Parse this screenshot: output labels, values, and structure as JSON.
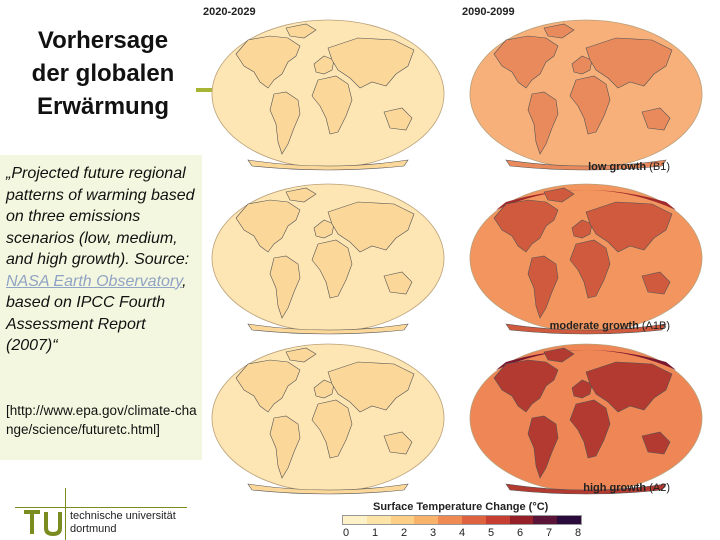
{
  "slide": {
    "title": "Vorhersage\nder globalen\nErwärmung",
    "caption_text": "„Projected future regional patterns of warming based on three emissions scenarios (low, medium, and high growth). Source: ",
    "caption_link": "NASA Earth Observatory",
    "caption_tail": ", based on IPCC Fourth Assessment Report (2007)“",
    "url": "[http://www.epa.gov/climate-change/science/futuretc.html]",
    "university": "technische universität\ndortmund"
  },
  "figure": {
    "periods": [
      "2020-2029",
      "2090-2099"
    ],
    "scenarios": [
      {
        "name": "low growth",
        "code": "(B1)"
      },
      {
        "name": "moderate growth",
        "code": "(A1B)"
      },
      {
        "name": "high growth",
        "code": "(A2)"
      }
    ],
    "legend_title": "Surface Temperature Change (°C)",
    "legend_ticks": [
      "0",
      "1",
      "2",
      "3",
      "4",
      "5",
      "6",
      "7",
      "8"
    ],
    "legend_colors": [
      "#fdf1c8",
      "#fce3a8",
      "#fbcf86",
      "#f8b26a",
      "#ef8b52",
      "#df6240",
      "#c63d31",
      "#962027",
      "#5a1438",
      "#2a0a3a"
    ],
    "map_colors": {
      "ocean_2020": "#fde6b3",
      "land_2020": "#fbd79a",
      "ocean_2090_low": "#f7b07a",
      "land_2090_low": "#e98a5c",
      "ocean_2090_mod": "#f2955f",
      "land_2090_mod": "#d05a3e",
      "ocean_2090_high": "#ee8656",
      "land_2090_high": "#b33a30",
      "arctic_high": "#7a1830"
    }
  }
}
